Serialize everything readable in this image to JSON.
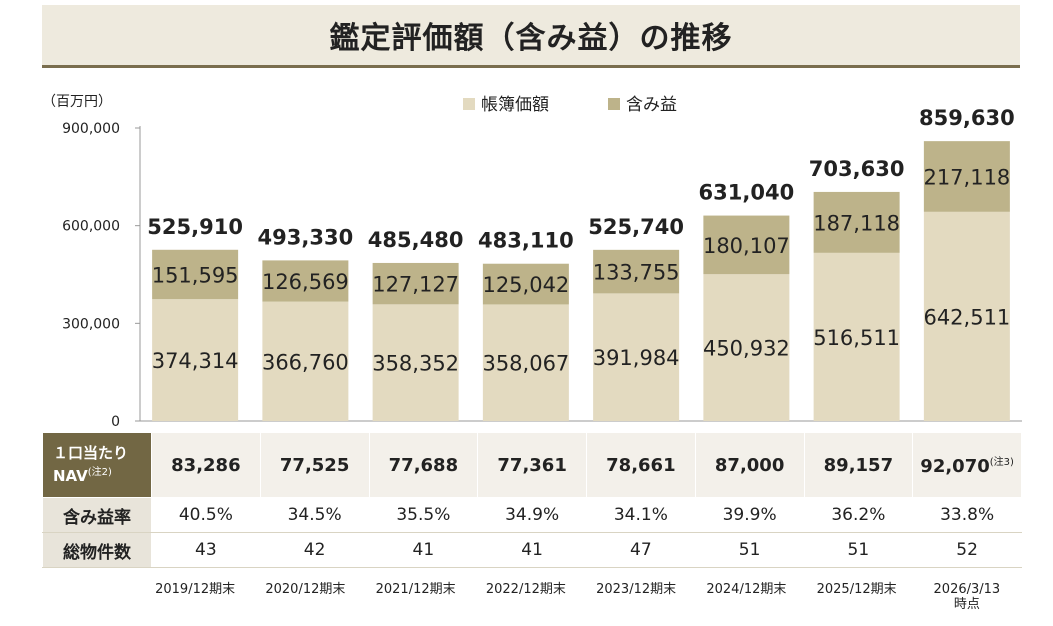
{
  "title": "鑑定評価額（含み益）の推移",
  "chart_data": {
    "type": "bar",
    "stacked": true,
    "unit_label": "（百万円）",
    "categories": [
      "2019/12期末",
      "2020/12期末",
      "2021/12期末",
      "2022/12期末",
      "2023/12期末",
      "2024/12期末",
      "2025/12期末",
      "2026/3/13\n時点"
    ],
    "series": [
      {
        "name": "帳簿価額",
        "color": "#e3dac0",
        "values": [
          374314,
          366760,
          358352,
          358067,
          391984,
          450932,
          516511,
          642511
        ],
        "labels": [
          "374,314",
          "366,760",
          "358,352",
          "358,067",
          "391,984",
          "450,932",
          "516,511",
          "642,511"
        ]
      },
      {
        "name": "含み益",
        "color": "#bdb38a",
        "values": [
          151595,
          126569,
          127127,
          125042,
          133755,
          180107,
          187118,
          217118
        ],
        "labels": [
          "151,595",
          "126,569",
          "127,127",
          "125,042",
          "133,755",
          "180,107",
          "187,118",
          "217,118"
        ]
      }
    ],
    "totals": [
      525910,
      493330,
      485480,
      483110,
      525740,
      631040,
      703630,
      859630
    ],
    "total_labels": [
      "525,910",
      "493,330",
      "485,480",
      "483,110",
      "525,740",
      "631,040",
      "703,630",
      "859,630"
    ],
    "yticks": [
      0,
      300000,
      600000,
      900000
    ],
    "ytick_labels": [
      "0",
      "300,000",
      "600,000",
      "900,000"
    ],
    "ylim": [
      0,
      900000
    ],
    "legend_position": "top-center"
  },
  "table": {
    "nav_label_line1": "１口当たり",
    "nav_label_line2": "NAV",
    "nav_label_note": "(注2)",
    "nav_values": [
      "83,286",
      "77,525",
      "77,688",
      "77,361",
      "78,661",
      "87,000",
      "89,157",
      "92,070"
    ],
    "nav_last_note": "(注3)",
    "ratio_label": "含み益率",
    "ratio_values": [
      "40.5%",
      "34.5%",
      "35.5%",
      "34.9%",
      "34.1%",
      "39.9%",
      "36.2%",
      "33.8%"
    ],
    "count_label": "総物件数",
    "count_values": [
      "43",
      "42",
      "41",
      "41",
      "47",
      "51",
      "51",
      "52"
    ]
  }
}
